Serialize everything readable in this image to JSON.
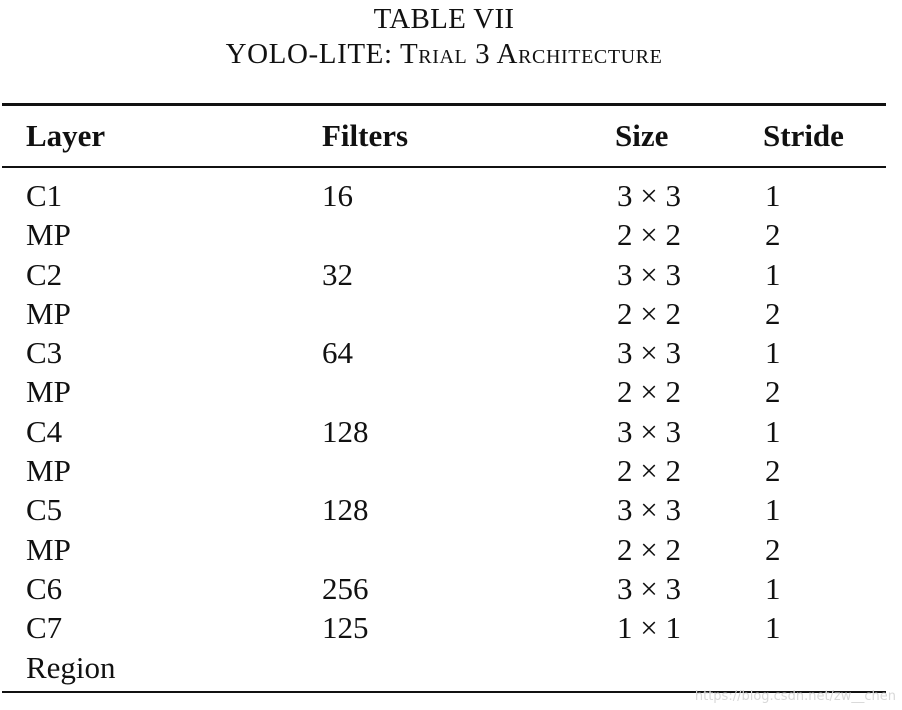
{
  "caption": {
    "table_number": "TABLE VII",
    "title": "YOLO-LITE: Trial 3 Architecture"
  },
  "table": {
    "headers": {
      "layer": "Layer",
      "filters": "Filters",
      "size": "Size",
      "stride": "Stride"
    },
    "rows": [
      {
        "layer": "C1",
        "filters": "16",
        "size": "3 × 3",
        "stride": "1"
      },
      {
        "layer": "MP",
        "filters": "",
        "size": "2 × 2",
        "stride": "2"
      },
      {
        "layer": "C2",
        "filters": "32",
        "size": "3 × 3",
        "stride": "1"
      },
      {
        "layer": "MP",
        "filters": "",
        "size": "2 × 2",
        "stride": "2"
      },
      {
        "layer": "C3",
        "filters": "64",
        "size": "3 × 3",
        "stride": "1"
      },
      {
        "layer": "MP",
        "filters": "",
        "size": "2 × 2",
        "stride": "2"
      },
      {
        "layer": "C4",
        "filters": "128",
        "size": "3 × 3",
        "stride": "1"
      },
      {
        "layer": "MP",
        "filters": "",
        "size": "2 × 2",
        "stride": "2"
      },
      {
        "layer": "C5",
        "filters": "128",
        "size": "3 × 3",
        "stride": "1"
      },
      {
        "layer": "MP",
        "filters": "",
        "size": "2 × 2",
        "stride": "2"
      },
      {
        "layer": "C6",
        "filters": "256",
        "size": "3 × 3",
        "stride": "1"
      },
      {
        "layer": "C7",
        "filters": "125",
        "size": "1 × 1",
        "stride": "1"
      },
      {
        "layer": "Region",
        "filters": "",
        "size": "",
        "stride": ""
      }
    ]
  },
  "watermark": "https://blog.csdn.net/zw__chen"
}
